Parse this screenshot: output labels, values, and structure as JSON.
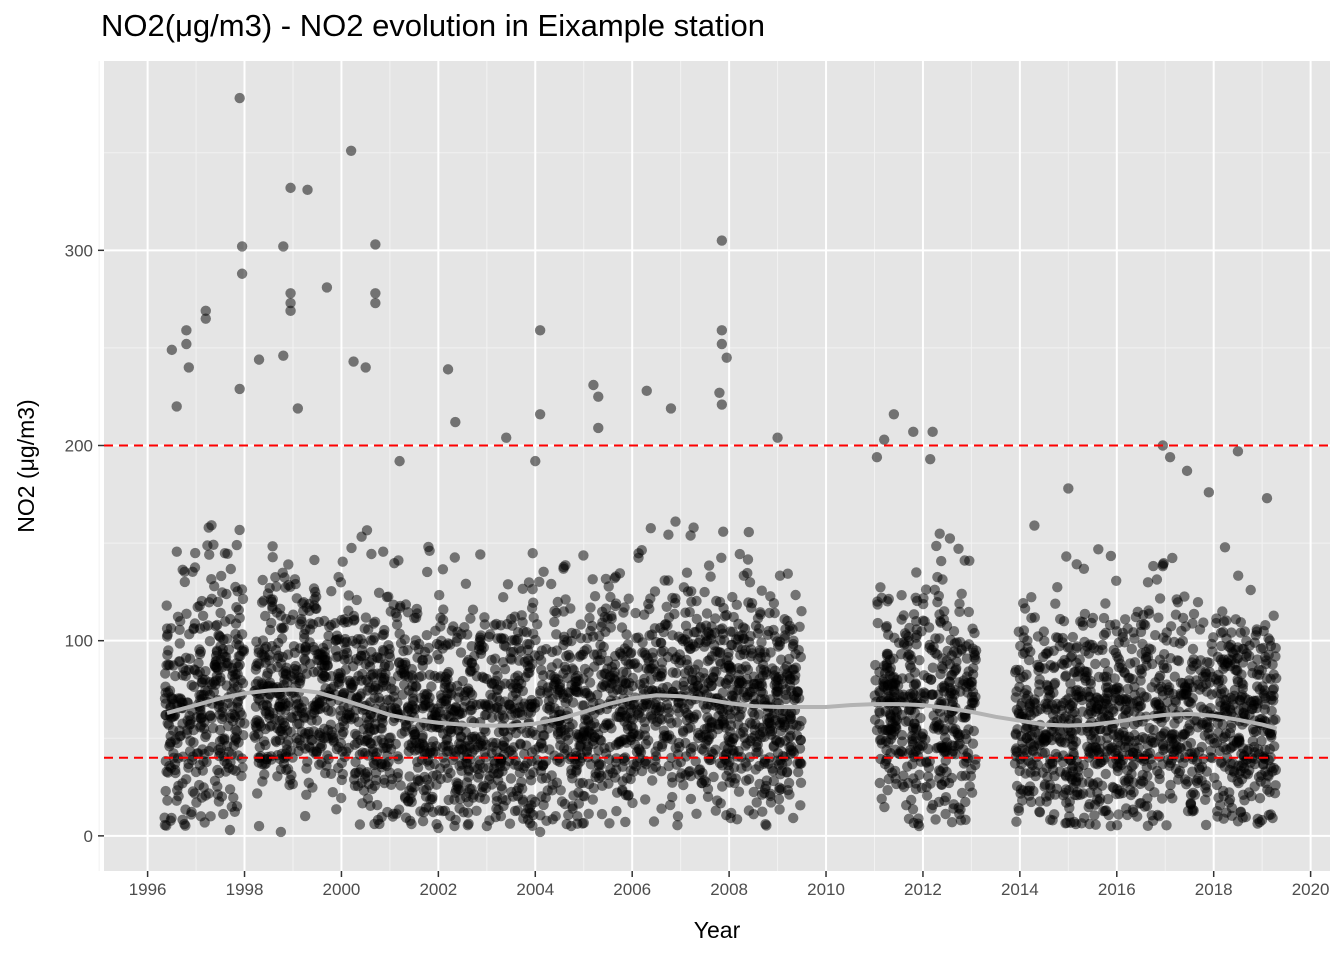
{
  "chart_data": {
    "type": "scatter",
    "title": "NO2(μg/m3) - NO2 evolution in Eixample station",
    "xlabel": "Year",
    "ylabel": "NO2 (μg/m3)",
    "xlim": [
      1995.1,
      2020.4
    ],
    "ylim": [
      -18,
      397
    ],
    "x_ticks": [
      1996,
      1998,
      2000,
      2002,
      2004,
      2006,
      2008,
      2010,
      2012,
      2014,
      2016,
      2018,
      2020
    ],
    "x_tick_labels": [
      "1996",
      "1998",
      "2000",
      "2002",
      "2004",
      "2006",
      "2008",
      "2010",
      "2012",
      "2014",
      "2016",
      "2018",
      "2020"
    ],
    "y_ticks": [
      0,
      100,
      200,
      300
    ],
    "y_tick_labels": [
      "0",
      "100",
      "200",
      "300"
    ],
    "grid": true,
    "background": "#e5e5e5",
    "reference_lines": [
      {
        "y": 200,
        "color": "#ff0000",
        "style": "dashed"
      },
      {
        "y": 40,
        "color": "#ff0000",
        "style": "dashed"
      }
    ],
    "data_periods": [
      {
        "start": 1996.35,
        "end": 1998.0
      },
      {
        "start": 1998.2,
        "end": 2009.5
      },
      {
        "start": 2011.0,
        "end": 2013.1
      },
      {
        "start": 2013.9,
        "end": 2019.3
      }
    ],
    "series": [
      {
        "type": "scatter",
        "color": "#000000",
        "opacity": 0.5,
        "points": [
          [
            1997.9,
            378
          ],
          [
            2000.2,
            351
          ],
          [
            1998.95,
            332
          ],
          [
            1999.3,
            331
          ],
          [
            1997.95,
            302
          ],
          [
            1998.8,
            302
          ],
          [
            2000.7,
            303
          ],
          [
            2007.85,
            305
          ],
          [
            1997.95,
            288
          ],
          [
            1999.7,
            281
          ],
          [
            1998.95,
            278
          ],
          [
            2000.7,
            278
          ],
          [
            1998.95,
            273
          ],
          [
            2000.7,
            273
          ],
          [
            1998.95,
            269
          ],
          [
            1997.2,
            269
          ],
          [
            1997.2,
            265
          ],
          [
            1996.8,
            259
          ],
          [
            2004.1,
            259
          ],
          [
            2007.85,
            259
          ],
          [
            1996.5,
            249
          ],
          [
            1996.8,
            252
          ],
          [
            2007.85,
            252
          ],
          [
            1998.3,
            244
          ],
          [
            1998.8,
            246
          ],
          [
            2000.25,
            243
          ],
          [
            2000.5,
            240
          ],
          [
            2002.2,
            239
          ],
          [
            1996.85,
            240
          ],
          [
            2007.95,
            245
          ],
          [
            2005.2,
            231
          ],
          [
            2006.3,
            228
          ],
          [
            2007.8,
            227
          ],
          [
            1997.9,
            229
          ],
          [
            1996.6,
            220
          ],
          [
            1999.1,
            219
          ],
          [
            2002.35,
            212
          ],
          [
            2004.1,
            216
          ],
          [
            2005.3,
            225
          ],
          [
            2006.8,
            219
          ],
          [
            2007.85,
            221
          ],
          [
            2011.4,
            216
          ],
          [
            2011.2,
            203
          ],
          [
            2012.2,
            207
          ],
          [
            2011.8,
            207
          ],
          [
            2005.3,
            209
          ],
          [
            2003.4,
            204
          ],
          [
            2009.0,
            204
          ],
          [
            2016.95,
            200
          ],
          [
            2017.1,
            194
          ],
          [
            2017.45,
            187
          ],
          [
            2018.5,
            197
          ],
          [
            2015.0,
            178
          ],
          [
            2017.9,
            176
          ],
          [
            2019.1,
            173
          ],
          [
            2014.3,
            159
          ],
          [
            2011.05,
            194
          ],
          [
            2012.15,
            193
          ],
          [
            2004.0,
            192
          ],
          [
            2001.2,
            192
          ],
          [
            1996.6,
            18
          ],
          [
            1996.9,
            11
          ],
          [
            1997.1,
            10
          ],
          [
            1997.3,
            10
          ],
          [
            1997.7,
            3
          ],
          [
            1998.3,
            5
          ],
          [
            1998.75,
            2
          ],
          [
            2004.1,
            2
          ],
          [
            2002.0,
            4
          ],
          [
            2003.0,
            5
          ],
          [
            2008.75,
            6
          ],
          [
            2012.6,
            7
          ]
        ]
      },
      {
        "type": "line",
        "name": "",
        "color": "#b3b3b3",
        "points": [
          [
            1996.4,
            63
          ],
          [
            1997.0,
            67
          ],
          [
            1997.5,
            70.5
          ],
          [
            1998.0,
            73
          ],
          [
            1998.5,
            74.5
          ],
          [
            1999.0,
            75
          ],
          [
            1999.5,
            73.5
          ],
          [
            2000.0,
            70
          ],
          [
            2000.5,
            66
          ],
          [
            2001.0,
            62
          ],
          [
            2001.5,
            59.5
          ],
          [
            2002.0,
            58
          ],
          [
            2002.5,
            57
          ],
          [
            2003.0,
            56.5
          ],
          [
            2003.5,
            56.5
          ],
          [
            2004.0,
            57.5
          ],
          [
            2004.5,
            60
          ],
          [
            2005.0,
            63.5
          ],
          [
            2005.5,
            67.5
          ],
          [
            2006.0,
            70.5
          ],
          [
            2006.5,
            72
          ],
          [
            2007.0,
            71.5
          ],
          [
            2007.5,
            70
          ],
          [
            2008.0,
            68
          ],
          [
            2008.5,
            66.5
          ],
          [
            2009.0,
            66
          ],
          [
            2009.5,
            66
          ],
          [
            2010.0,
            66
          ],
          [
            2010.5,
            67
          ],
          [
            2011.0,
            67.5
          ],
          [
            2011.5,
            67.5
          ],
          [
            2012.0,
            67
          ],
          [
            2012.5,
            65.5
          ],
          [
            2013.0,
            63.5
          ],
          [
            2013.5,
            61
          ],
          [
            2014.0,
            59
          ],
          [
            2014.5,
            57
          ],
          [
            2015.0,
            56.5
          ],
          [
            2015.5,
            57
          ],
          [
            2016.0,
            58.5
          ],
          [
            2016.5,
            60.5
          ],
          [
            2017.0,
            62
          ],
          [
            2017.5,
            62.5
          ],
          [
            2018.0,
            61.5
          ],
          [
            2018.5,
            59.5
          ],
          [
            2019.0,
            57
          ],
          [
            2019.3,
            55
          ]
        ]
      }
    ]
  }
}
